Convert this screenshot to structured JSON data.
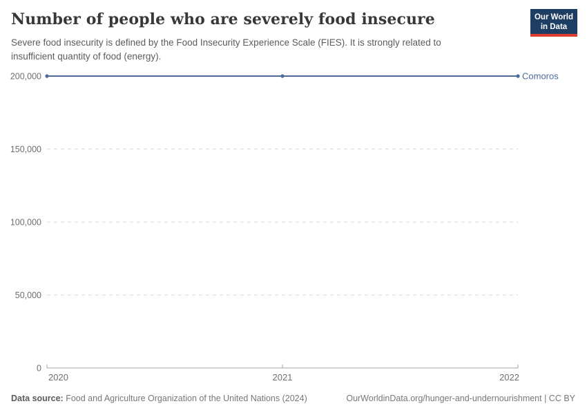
{
  "header": {
    "title": "Number of people who are severely food insecure",
    "subtitle": "Severe food insecurity is defined by the Food Insecurity Experience Scale (FIES). It is strongly related to insufficient quantity of food (energy).",
    "logo_line1": "Our World",
    "logo_line2": "in Data"
  },
  "chart_data": {
    "type": "line",
    "title": "Number of people who are severely food insecure",
    "x": [
      2020,
      2021,
      2022
    ],
    "series": [
      {
        "name": "Comoros",
        "color": "#4C6A9C",
        "values": [
          200000,
          200000,
          200000
        ]
      }
    ],
    "x_ticks": [
      2020,
      2021,
      2022
    ],
    "y_ticks": [
      0,
      50000,
      100000,
      150000,
      200000
    ],
    "xlim": [
      2020,
      2022
    ],
    "ylim": [
      0,
      200000
    ],
    "xlabel": "",
    "ylabel": "",
    "grid": "horizontal-dashed",
    "legend_position": "right-of-line",
    "entity_label": "Comoros"
  },
  "footer": {
    "datasource_label": "Data source:",
    "datasource_text": "Food and Agriculture Organization of the United Nations (2024)",
    "license_text": "OurWorldinData.org/hunger-and-undernourishment | CC BY"
  },
  "colors": {
    "line": "#4C6A9C",
    "grid": "#dadada",
    "axis": "#a3a3a3",
    "tick_label": "#6e6e6e",
    "logo_bg": "#1d3d63",
    "logo_accent": "#dc3c31"
  }
}
